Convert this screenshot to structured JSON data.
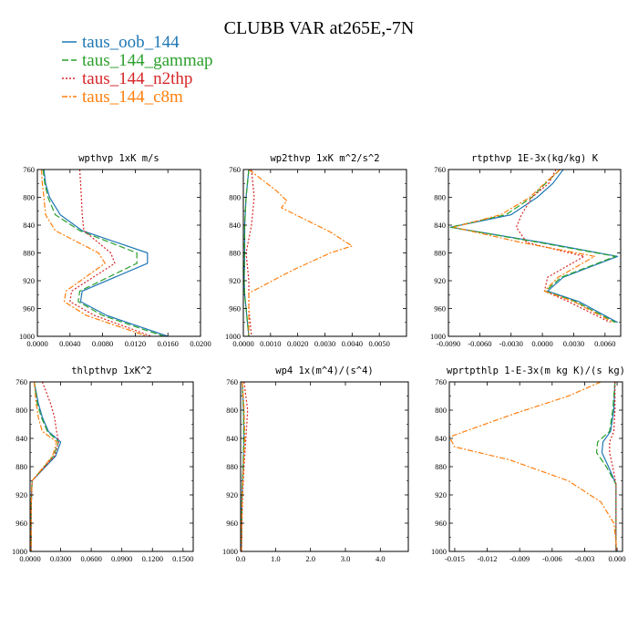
{
  "figure": {
    "title": "CLUBB VAR at265E,-7N"
  },
  "legend": [
    {
      "name": "taus_oob_144",
      "color": "#1f77b4",
      "dash": ""
    },
    {
      "name": "taus_144_gammap",
      "color": "#2ca02c",
      "dash": "7,3"
    },
    {
      "name": "taus_144_n2thp",
      "color": "#d62728",
      "dash": "2,2"
    },
    {
      "name": "taus_144_c8m",
      "color": "#ff7f0e",
      "dash": "6,2,2,2"
    }
  ],
  "chart_data": [
    {
      "type": "line",
      "title": "wpthvp  1xK m/s",
      "xlim": [
        0,
        0.02
      ],
      "ylim": [
        760,
        1000
      ],
      "xticks": [
        "0.0000",
        "0.0040",
        "0.0080",
        "0.0120",
        "0.0160",
        "0.0200"
      ],
      "yticks": [
        "760",
        "800",
        "840",
        "880",
        "920",
        "960",
        "1000"
      ],
      "series": [
        {
          "name": "taus_oob_144",
          "x": [
            0.0008,
            0.001,
            0.0015,
            0.0028,
            0.0055,
            0.0135,
            0.0135,
            0.0055,
            0.0053,
            0.0085,
            0.016
          ],
          "y": [
            760,
            780,
            800,
            825,
            848,
            880,
            895,
            935,
            950,
            970,
            1000
          ]
        },
        {
          "name": "taus_144_gammap",
          "x": [
            0.0007,
            0.0009,
            0.0013,
            0.0022,
            0.0052,
            0.0122,
            0.0122,
            0.0052,
            0.005,
            0.008,
            0.0155
          ],
          "y": [
            760,
            780,
            800,
            825,
            848,
            880,
            895,
            935,
            950,
            970,
            1000
          ]
        },
        {
          "name": "taus_144_n2thp",
          "x": [
            0.0052,
            0.0053,
            0.0054,
            0.0055,
            0.0057,
            0.009,
            0.0095,
            0.0042,
            0.004,
            0.007,
            0.014
          ],
          "y": [
            760,
            780,
            800,
            825,
            848,
            880,
            895,
            935,
            950,
            970,
            1000
          ]
        },
        {
          "name": "taus_144_c8m",
          "x": [
            0.0005,
            0.0006,
            0.0008,
            0.001,
            0.0022,
            0.0075,
            0.0083,
            0.0035,
            0.0033,
            0.006,
            0.0135
          ],
          "y": [
            760,
            780,
            800,
            825,
            848,
            880,
            895,
            935,
            950,
            970,
            1000
          ]
        }
      ]
    },
    {
      "type": "line",
      "title": "wp2thvp  1xK m^2/s^2",
      "xlim": [
        0,
        0.006
      ],
      "ylim": [
        760,
        1000
      ],
      "xticks": [
        "0.0000",
        "0.0010",
        "0.0020",
        "0.0030",
        "0.0040",
        "0.0050"
      ],
      "yticks": [
        "760",
        "800",
        "840",
        "880",
        "920",
        "960",
        "1000"
      ],
      "series": [
        {
          "name": "taus_oob_144",
          "x": [
            0.0002,
            0.0001,
            5e-05,
            5e-05,
            3e-05,
            5e-05,
            0.0001,
            0.0002
          ],
          "y": [
            760,
            800,
            840,
            880,
            920,
            940,
            960,
            1000
          ]
        },
        {
          "name": "taus_144_gammap",
          "x": [
            0.0002,
            0.0001,
            5e-05,
            4e-05,
            3e-05,
            5e-05,
            0.0001,
            0.0002
          ],
          "y": [
            760,
            800,
            840,
            880,
            920,
            940,
            960,
            1000
          ]
        },
        {
          "name": "taus_144_n2thp",
          "x": [
            0.0003,
            0.0004,
            0.0003,
            0.0001,
            0.0002,
            0.0002,
            0.0002,
            0.0003
          ],
          "y": [
            760,
            800,
            840,
            880,
            920,
            940,
            960,
            1000
          ]
        },
        {
          "name": "taus_144_c8m",
          "x": [
            0.0002,
            0.0012,
            0.0016,
            0.0014,
            0.0032,
            0.004,
            0.0032,
            0.0018,
            0.0002,
            0.0002,
            0.0002
          ],
          "y": [
            760,
            790,
            805,
            815,
            850,
            870,
            880,
            905,
            938,
            960,
            1000
          ]
        }
      ]
    },
    {
      "type": "line",
      "title": "rtpthvp  1E-3x(kg/kg) K",
      "xlim": [
        -0.009,
        0.0075
      ],
      "ylim": [
        760,
        1000
      ],
      "xticks": [
        "-0.0090",
        "-0.0060",
        "-0.0030",
        "0.0000",
        "0.0030",
        "0.0060"
      ],
      "yticks": [
        "760",
        "800",
        "840",
        "880",
        "920",
        "960",
        "1000"
      ],
      "series": [
        {
          "name": "taus_oob_144",
          "x": [
            0.002,
            0.001,
            -0.0005,
            -0.003,
            -0.0088,
            0.0,
            0.0072,
            0.002,
            0.0005,
            0.0035,
            0.0072
          ],
          "y": [
            760,
            780,
            800,
            825,
            843,
            865,
            885,
            915,
            935,
            950,
            980
          ]
        },
        {
          "name": "taus_144_gammap",
          "x": [
            0.0017,
            0.0003,
            -0.001,
            -0.0035,
            -0.0088,
            -0.0003,
            0.007,
            0.0018,
            0.0003,
            0.0032,
            0.007
          ],
          "y": [
            760,
            780,
            800,
            825,
            843,
            865,
            885,
            915,
            935,
            950,
            980
          ]
        },
        {
          "name": "taus_144_n2thp",
          "x": [
            0.0013,
            0.0006,
            -0.001,
            -0.002,
            -0.0025,
            -0.0015,
            0.004,
            0.0005,
            0.0002,
            0.0025,
            0.0065
          ],
          "y": [
            760,
            780,
            800,
            825,
            843,
            865,
            885,
            915,
            935,
            950,
            980
          ]
        },
        {
          "name": "taus_144_c8m",
          "x": [
            0.0017,
            0.0002,
            -0.0012,
            -0.004,
            -0.0085,
            -0.002,
            0.005,
            0.0015,
            0.0002,
            0.003,
            0.0068
          ],
          "y": [
            760,
            780,
            800,
            825,
            843,
            865,
            885,
            915,
            935,
            950,
            980
          ]
        }
      ]
    },
    {
      "type": "line",
      "title": "thlpthvp  1xK^2",
      "xlim": [
        0,
        0.16
      ],
      "ylim": [
        760,
        1000
      ],
      "xticks": [
        "0.0000",
        "0.0300",
        "0.0600",
        "0.0900",
        "0.1200",
        "0.1500"
      ],
      "yticks": [
        "760",
        "800",
        "840",
        "880",
        "920",
        "960",
        "1000"
      ],
      "series": [
        {
          "name": "taus_oob_144",
          "x": [
            0.004,
            0.008,
            0.012,
            0.018,
            0.03,
            0.025,
            0.002,
            0.001,
            0.001
          ],
          "y": [
            760,
            790,
            810,
            830,
            845,
            865,
            900,
            940,
            1000
          ]
        },
        {
          "name": "taus_144_gammap",
          "x": [
            0.004,
            0.007,
            0.011,
            0.017,
            0.028,
            0.023,
            0.002,
            0.001,
            0.001
          ],
          "y": [
            760,
            790,
            810,
            830,
            845,
            865,
            900,
            940,
            1000
          ]
        },
        {
          "name": "taus_144_n2thp",
          "x": [
            0.012,
            0.02,
            0.024,
            0.026,
            0.028,
            0.024,
            0.002,
            0.001,
            0.001
          ],
          "y": [
            760,
            790,
            810,
            830,
            845,
            865,
            900,
            940,
            1000
          ]
        },
        {
          "name": "taus_144_c8m",
          "x": [
            0.004,
            0.006,
            0.008,
            0.012,
            0.026,
            0.022,
            0.002,
            0.001,
            0.001
          ],
          "y": [
            760,
            790,
            810,
            830,
            845,
            865,
            900,
            940,
            1000
          ]
        }
      ]
    },
    {
      "type": "line",
      "title": "wp4  1x(m^4)/(s^4)",
      "xlim": [
        0,
        4.8
      ],
      "ylim": [
        760,
        1000
      ],
      "xticks": [
        "0.0",
        "1.0",
        "2.0",
        "3.0",
        "4.0"
      ],
      "yticks": [
        "760",
        "800",
        "840",
        "880",
        "920",
        "960",
        "1000"
      ],
      "series": [
        {
          "name": "taus_oob_144",
          "x": [
            0.05,
            0.08,
            0.1,
            0.07,
            0.04,
            0.03,
            0.02
          ],
          "y": [
            760,
            800,
            840,
            880,
            920,
            960,
            1000
          ]
        },
        {
          "name": "taus_144_gammap",
          "x": [
            0.05,
            0.08,
            0.09,
            0.07,
            0.04,
            0.03,
            0.02
          ],
          "y": [
            760,
            800,
            840,
            880,
            920,
            960,
            1000
          ]
        },
        {
          "name": "taus_144_n2thp",
          "x": [
            0.1,
            0.2,
            0.15,
            0.1,
            0.06,
            0.04,
            0.03
          ],
          "y": [
            760,
            800,
            840,
            880,
            920,
            960,
            1000
          ]
        },
        {
          "name": "taus_144_c8m",
          "x": [
            0.05,
            0.1,
            0.12,
            0.08,
            0.05,
            0.03,
            0.02
          ],
          "y": [
            760,
            800,
            840,
            880,
            920,
            960,
            1000
          ]
        }
      ]
    },
    {
      "type": "line",
      "title": "wprtpthlp  1-E-3x(m kg K)/(s kg)",
      "xlim": [
        -0.0155,
        0.0005
      ],
      "ylim": [
        760,
        1000
      ],
      "xticks": [
        "-0.015",
        "-0.012",
        "-0.009",
        "-0.006",
        "-0.003",
        "0.000"
      ],
      "yticks": [
        "760",
        "800",
        "840",
        "880",
        "920",
        "960",
        "1000"
      ],
      "series": [
        {
          "name": "taus_oob_144",
          "x": [
            -0.0002,
            -0.0003,
            -0.0006,
            -0.0013,
            -0.0014,
            -0.0008,
            -0.0001,
            -0.0001,
            -0.0001
          ],
          "y": [
            760,
            800,
            830,
            845,
            860,
            880,
            905,
            950,
            1000
          ]
        },
        {
          "name": "taus_144_gammap",
          "x": [
            -0.0002,
            -0.0004,
            -0.0007,
            -0.0018,
            -0.0019,
            -0.001,
            -0.0001,
            -0.0001,
            -0.0001
          ],
          "y": [
            760,
            800,
            830,
            845,
            860,
            880,
            905,
            950,
            1000
          ]
        },
        {
          "name": "taus_144_n2thp",
          "x": [
            -0.0002,
            -0.0002,
            -0.0003,
            -0.0007,
            -0.0007,
            -0.0004,
            -0.0001,
            -0.0001,
            -0.0001
          ],
          "y": [
            760,
            800,
            830,
            845,
            860,
            880,
            905,
            950,
            1000
          ]
        },
        {
          "name": "taus_144_c8m",
          "x": [
            -0.0015,
            -0.0045,
            -0.0095,
            -0.0155,
            -0.015,
            -0.01,
            -0.0045,
            -0.0015,
            -0.0003,
            0.0
          ],
          "y": [
            760,
            780,
            805,
            838,
            852,
            870,
            900,
            930,
            960,
            1000
          ]
        }
      ]
    }
  ]
}
